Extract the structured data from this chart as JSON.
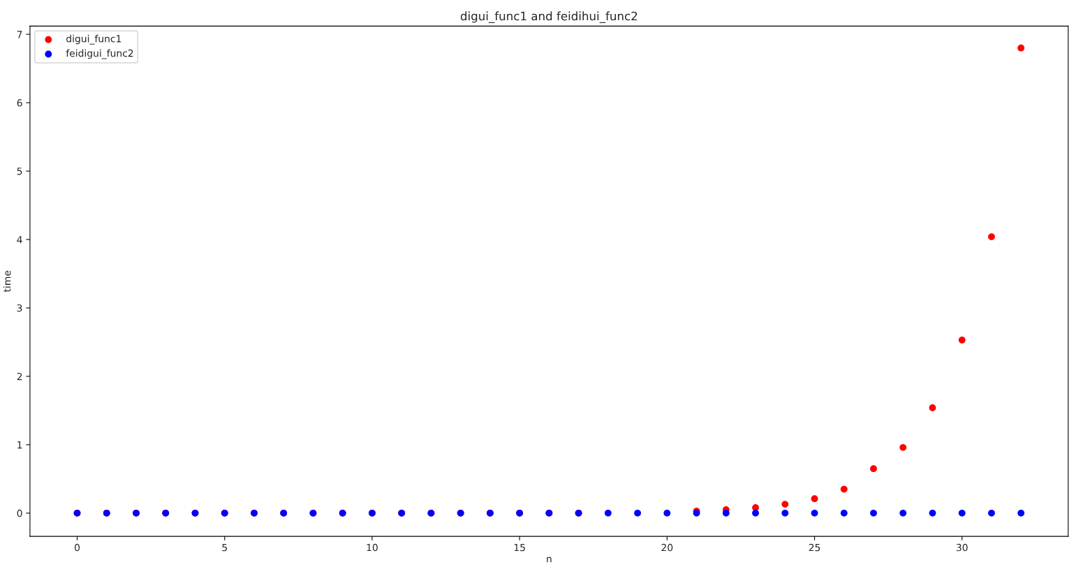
{
  "chart_data": {
    "type": "scatter",
    "title": "digui_func1 and feidihui_func2",
    "xlabel": "n",
    "ylabel": "time",
    "x": [
      0,
      1,
      2,
      3,
      4,
      5,
      6,
      7,
      8,
      9,
      10,
      11,
      12,
      13,
      14,
      15,
      16,
      17,
      18,
      19,
      20,
      21,
      22,
      23,
      24,
      25,
      26,
      27,
      28,
      29,
      30,
      31,
      32
    ],
    "series": [
      {
        "name": "digui_func1",
        "color": "#ff0000",
        "values": [
          0,
          0,
          0,
          0,
          0,
          0,
          0,
          0,
          0,
          0,
          0,
          0,
          0,
          0,
          0,
          0,
          0,
          0,
          null,
          null,
          null,
          0.03,
          0.05,
          0.08,
          0.13,
          0.21,
          0.35,
          0.65,
          0.96,
          1.54,
          2.53,
          4.04,
          6.8
        ]
      },
      {
        "name": "feidigui_func2",
        "color": "#0000ff",
        "values": [
          0,
          0,
          0,
          0,
          0,
          0,
          0,
          0,
          0,
          0,
          0,
          0,
          0,
          0,
          0,
          0,
          0,
          0,
          0,
          0,
          0,
          0,
          0,
          0,
          0,
          0,
          0,
          0,
          0,
          0,
          0,
          0,
          0
        ]
      }
    ],
    "xlim": [
      -1.6,
      33.6
    ],
    "ylim": [
      -0.34,
      7.12
    ],
    "xticks": [
      0,
      5,
      10,
      15,
      20,
      25,
      30
    ],
    "yticks": [
      0,
      1,
      2,
      3,
      4,
      5,
      6,
      7
    ],
    "marker": "circle",
    "legend": "top left",
    "grid": false
  }
}
